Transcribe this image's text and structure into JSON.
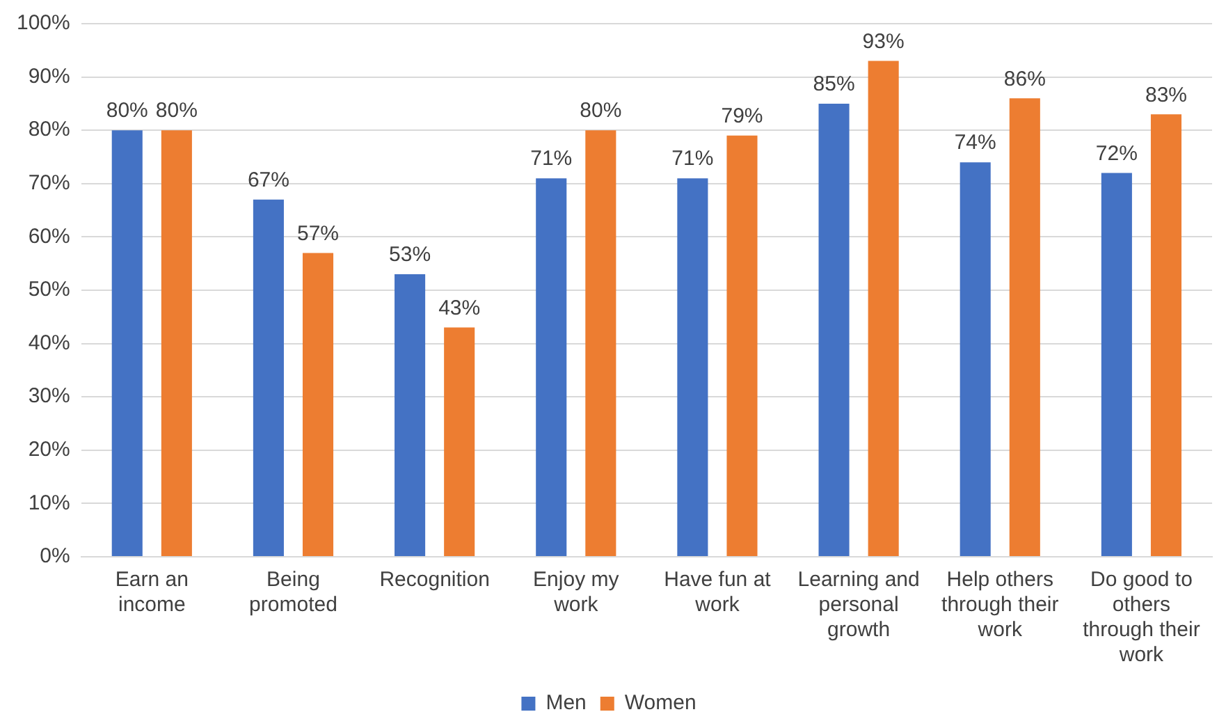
{
  "chart_data": {
    "type": "bar",
    "categories": [
      "Earn an income",
      "Being promoted",
      "Recognition",
      "Enjoy my work",
      "Have fun at work",
      "Learning and personal growth",
      "Help others through their work",
      "Do good to others through their work"
    ],
    "series": [
      {
        "name": "Men",
        "color": "#4472c4",
        "values": [
          80,
          67,
          53,
          71,
          71,
          85,
          74,
          72
        ],
        "value_labels": [
          "80%",
          "67%",
          "53%",
          "71%",
          "71%",
          "85%",
          "74%",
          "72%"
        ]
      },
      {
        "name": "Women",
        "color": "#ed7d31",
        "values": [
          80,
          57,
          43,
          80,
          79,
          93,
          86,
          83
        ],
        "value_labels": [
          "80%",
          "57%",
          "43%",
          "80%",
          "79%",
          "93%",
          "86%",
          "83%"
        ]
      }
    ],
    "ylim": [
      0,
      100
    ],
    "yticks": [
      {
        "value": 0,
        "label": "0%"
      },
      {
        "value": 10,
        "label": "10%"
      },
      {
        "value": 20,
        "label": "20%"
      },
      {
        "value": 30,
        "label": "30%"
      },
      {
        "value": 40,
        "label": "40%"
      },
      {
        "value": 50,
        "label": "50%"
      },
      {
        "value": 60,
        "label": "60%"
      },
      {
        "value": 70,
        "label": "70%"
      },
      {
        "value": 80,
        "label": "80%"
      },
      {
        "value": 90,
        "label": "90%"
      },
      {
        "value": 100,
        "label": "100%"
      }
    ],
    "grid": "y",
    "legend": "bottom"
  }
}
